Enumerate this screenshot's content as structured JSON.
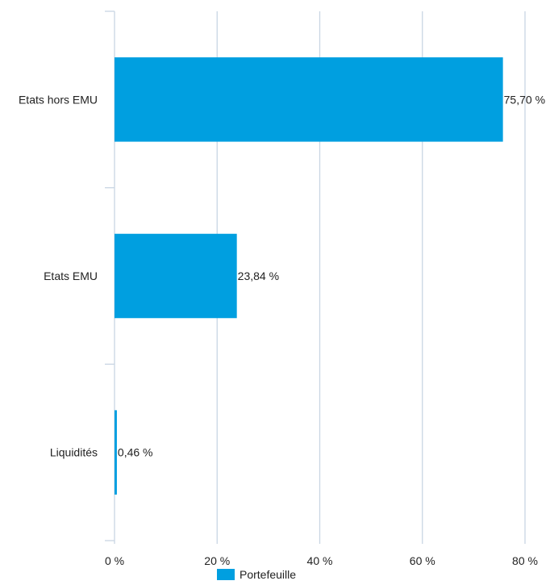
{
  "chart_data": {
    "type": "bar",
    "orientation": "horizontal",
    "categories": [
      "Etats hors EMU",
      "Etats EMU",
      "Liquidités"
    ],
    "series": [
      {
        "name": "Portefeuille",
        "values": [
          75.7,
          23.84,
          0.46
        ],
        "data_labels": [
          "75,70 %",
          "23,84 %",
          "0,46 %"
        ]
      }
    ],
    "x_ticks": [
      0,
      20,
      40,
      60,
      80
    ],
    "x_tick_labels": [
      "0 %",
      "20 %",
      "40 %",
      "60 %",
      "80 %"
    ],
    "xlim": [
      0,
      80
    ],
    "grid": true,
    "legend_position": "bottom-center",
    "colors": {
      "bar": "#009fe0",
      "grid": "#c9d6e3",
      "text": "#222222"
    }
  }
}
